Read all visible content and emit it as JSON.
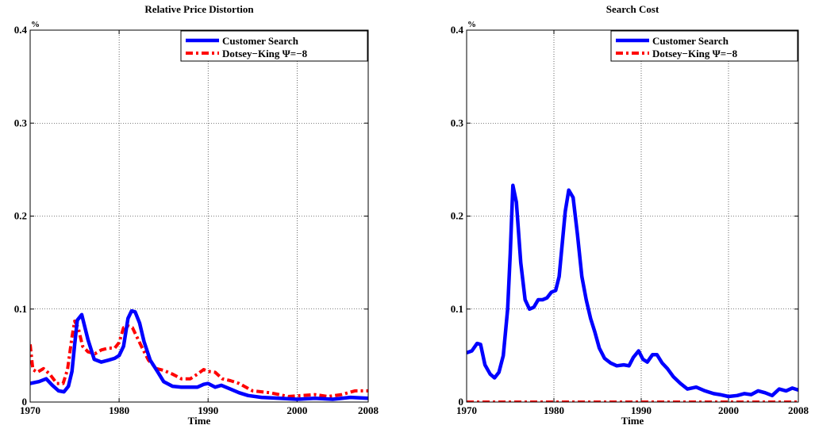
{
  "chart_data": [
    {
      "type": "line",
      "title": "Relative Price Distortion",
      "ylabel": "%",
      "xlabel": "Time",
      "xlim": [
        1970,
        2008
      ],
      "ylim": [
        0,
        0.4
      ],
      "xticks": [
        1970,
        1980,
        1990,
        2000,
        2008
      ],
      "yticks": [
        0,
        0.1,
        0.2,
        0.3,
        0.4
      ],
      "xtick_labels": [
        "1970",
        "1980",
        "1990",
        "2000",
        "2008"
      ],
      "ytick_labels": [
        "0",
        "0.1",
        "0.2",
        "0.3",
        "0.4"
      ],
      "grid": true,
      "legend_position": "top-right",
      "series": [
        {
          "name": "Customer Search",
          "color": "#0000ff",
          "style": "solid",
          "x": [
            1970,
            1971,
            1971.8,
            1972.5,
            1973.2,
            1973.8,
            1974.3,
            1974.7,
            1975.0,
            1975.3,
            1975.8,
            1976.5,
            1977.2,
            1978.0,
            1978.8,
            1979.5,
            1980.0,
            1980.5,
            1981.0,
            1981.4,
            1981.8,
            1982.3,
            1982.8,
            1983.5,
            1984.3,
            1985.0,
            1986.0,
            1987.0,
            1988.0,
            1988.8,
            1989.5,
            1990.0,
            1990.8,
            1991.5,
            1992.5,
            1993.5,
            1994.5,
            1996.0,
            1998.0,
            2000.0,
            2002.0,
            2004.0,
            2006.0,
            2008.0
          ],
          "values": [
            0.02,
            0.022,
            0.025,
            0.018,
            0.012,
            0.011,
            0.017,
            0.033,
            0.062,
            0.088,
            0.094,
            0.067,
            0.046,
            0.043,
            0.045,
            0.047,
            0.05,
            0.06,
            0.09,
            0.098,
            0.097,
            0.085,
            0.065,
            0.045,
            0.033,
            0.022,
            0.017,
            0.016,
            0.016,
            0.016,
            0.019,
            0.02,
            0.016,
            0.018,
            0.014,
            0.01,
            0.007,
            0.005,
            0.004,
            0.003,
            0.004,
            0.003,
            0.005,
            0.004
          ]
        },
        {
          "name": "Dotsey−King Ψ=−8",
          "color": "#ff0000",
          "style": "dash-dot",
          "x": [
            1970,
            1970.3,
            1970.8,
            1971.5,
            1972.2,
            1973.0,
            1973.7,
            1974.2,
            1974.7,
            1975.0,
            1975.4,
            1975.9,
            1976.5,
            1977.3,
            1978.0,
            1978.8,
            1979.5,
            1980.0,
            1980.5,
            1981.0,
            1981.5,
            1982.0,
            1982.6,
            1983.3,
            1984.2,
            1985.0,
            1986.0,
            1987.0,
            1988.0,
            1988.8,
            1989.5,
            1990.0,
            1990.8,
            1991.6,
            1992.5,
            1993.5,
            1995.0,
            1997.0,
            1999.0,
            2000.5,
            2002.0,
            2003.5,
            2005.0,
            2006.5,
            2008.0
          ],
          "values": [
            0.062,
            0.035,
            0.032,
            0.036,
            0.03,
            0.02,
            0.02,
            0.035,
            0.07,
            0.087,
            0.08,
            0.06,
            0.054,
            0.052,
            0.056,
            0.058,
            0.058,
            0.064,
            0.08,
            0.082,
            0.08,
            0.07,
            0.058,
            0.045,
            0.036,
            0.034,
            0.03,
            0.025,
            0.025,
            0.03,
            0.035,
            0.033,
            0.032,
            0.025,
            0.023,
            0.02,
            0.012,
            0.01,
            0.006,
            0.007,
            0.008,
            0.006,
            0.008,
            0.012,
            0.012
          ]
        }
      ]
    },
    {
      "type": "line",
      "title": "Search Cost",
      "ylabel": "%",
      "xlabel": "Time",
      "xlim": [
        1970,
        2008
      ],
      "ylim": [
        0,
        0.4
      ],
      "xticks": [
        1970,
        1980,
        1990,
        2000,
        2008
      ],
      "yticks": [
        0,
        0.1,
        0.2,
        0.3,
        0.4
      ],
      "xtick_labels": [
        "1970",
        "1980",
        "1990",
        "2000",
        "2008"
      ],
      "ytick_labels": [
        "0",
        "0.1",
        "0.2",
        "0.3",
        "0.4"
      ],
      "grid": true,
      "legend_position": "top-right",
      "series": [
        {
          "name": "Customer Search",
          "color": "#0000ff",
          "style": "solid",
          "x": [
            1970,
            1970.6,
            1971.2,
            1971.6,
            1972.1,
            1972.7,
            1973.2,
            1973.7,
            1974.2,
            1974.7,
            1975.0,
            1975.3,
            1975.7,
            1976.2,
            1976.7,
            1977.2,
            1977.7,
            1978.2,
            1978.7,
            1979.2,
            1979.7,
            1980.2,
            1980.6,
            1981.0,
            1981.3,
            1981.7,
            1982.2,
            1982.7,
            1983.2,
            1983.7,
            1984.2,
            1984.7,
            1985.2,
            1985.8,
            1986.5,
            1987.2,
            1988.0,
            1988.6,
            1989.1,
            1989.7,
            1990.2,
            1990.7,
            1991.3,
            1991.8,
            1992.4,
            1993.0,
            1993.7,
            1994.5,
            1995.3,
            1996.3,
            1997.3,
            1998.3,
            1999.0,
            2000.0,
            2001.0,
            2001.8,
            2002.6,
            2003.4,
            2004.2,
            2005.0,
            2005.8,
            2006.6,
            2007.3,
            2008.0
          ],
          "values": [
            0.053,
            0.055,
            0.063,
            0.062,
            0.04,
            0.03,
            0.026,
            0.032,
            0.05,
            0.1,
            0.16,
            0.233,
            0.215,
            0.15,
            0.11,
            0.1,
            0.102,
            0.11,
            0.11,
            0.112,
            0.118,
            0.12,
            0.135,
            0.175,
            0.205,
            0.228,
            0.22,
            0.18,
            0.135,
            0.11,
            0.09,
            0.075,
            0.058,
            0.047,
            0.042,
            0.039,
            0.04,
            0.039,
            0.048,
            0.055,
            0.046,
            0.043,
            0.051,
            0.051,
            0.042,
            0.036,
            0.027,
            0.02,
            0.014,
            0.016,
            0.012,
            0.009,
            0.008,
            0.006,
            0.007,
            0.009,
            0.008,
            0.012,
            0.01,
            0.007,
            0.014,
            0.012,
            0.015,
            0.013
          ]
        },
        {
          "name": "Dotsey−King Ψ=−8",
          "color": "#ff0000",
          "style": "dash-dot",
          "x": [
            1970,
            2008
          ],
          "values": [
            0,
            0
          ]
        }
      ]
    }
  ]
}
